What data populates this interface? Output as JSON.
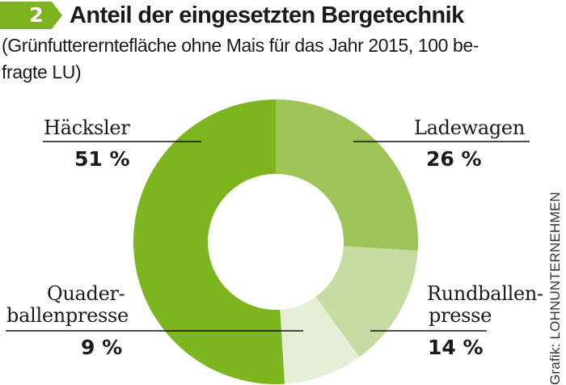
{
  "badge": {
    "number": "2",
    "color": "#7cb31e"
  },
  "title": "Anteil der eingesetzten Bergetechnik",
  "subtitle": "(Grünfuttererntefläche ohne Mais für das Jahr 2015, 100 be-fragte LU)",
  "subtitle_lines": [
    "(Grünfuttererntefläche ohne Mais für das Jahr 2015, 100 be-",
    "fragte LU)"
  ],
  "credit": "Grafik: LOHNUNTERNEHMEN",
  "chart_data": {
    "type": "pie",
    "variant": "donut",
    "title": "Anteil der eingesetzten Bergetechnik",
    "subtitle": "(Grünfuttererntefläche ohne Mais für das Jahr 2015, 100 befragte LU)",
    "unit": "%",
    "start": "top",
    "direction": "clockwise",
    "slices": [
      {
        "label": "Ladewagen",
        "label_lines": [
          "Ladewagen"
        ],
        "value": 26,
        "value_label": "26 %",
        "color": "#9cc456"
      },
      {
        "label": "Rundballenpresse",
        "label_lines": [
          "Rundballen-",
          "presse"
        ],
        "value": 14,
        "value_label": "14 %",
        "color": "#c6dca2"
      },
      {
        "label": "Quaderballenpresse",
        "label_lines": [
          "Quader-",
          "ballenpresse"
        ],
        "value": 9,
        "value_label": "9 %",
        "color": "#e5efd8"
      },
      {
        "label": "Häcksler",
        "label_lines": [
          "Häcksler"
        ],
        "value": 51,
        "value_label": "51 %",
        "color": "#7cb51e"
      }
    ]
  }
}
